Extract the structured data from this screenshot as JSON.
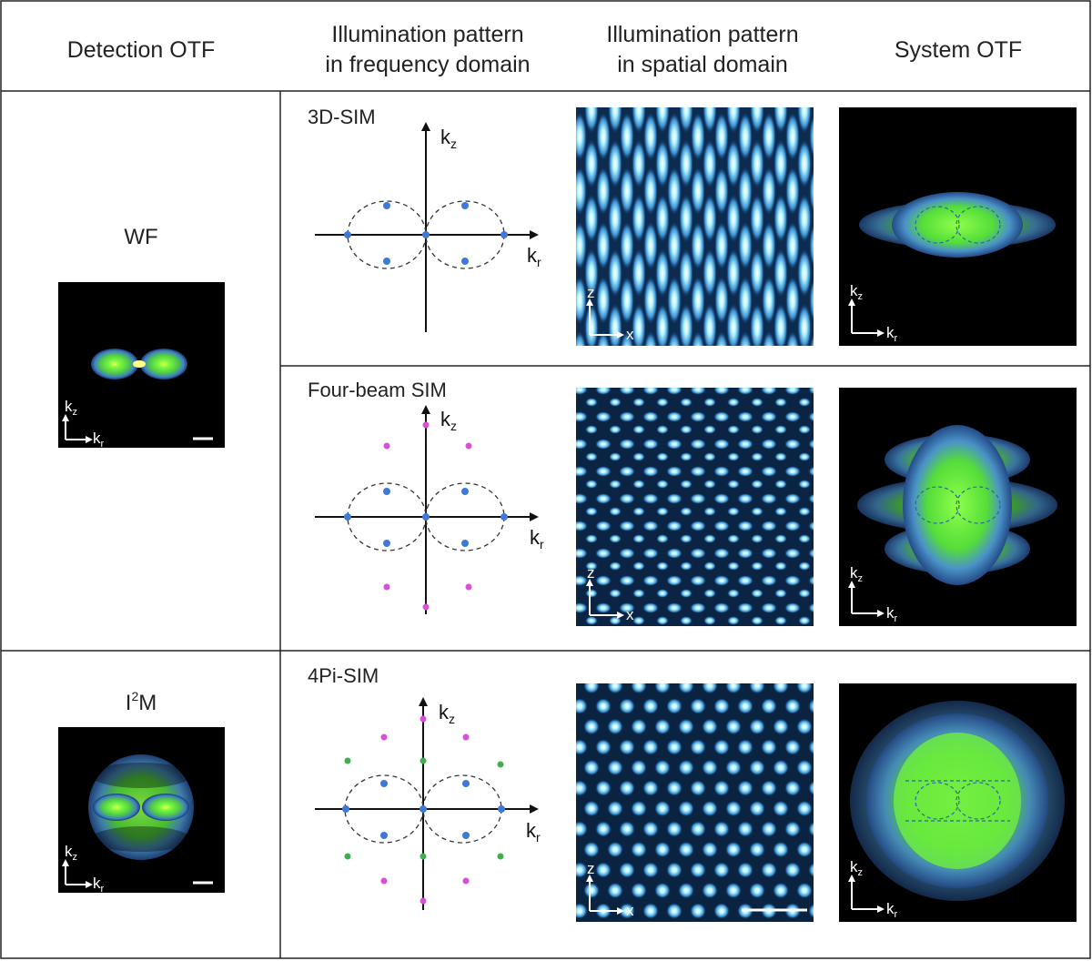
{
  "headers": {
    "detection_otf": "Detection OTF",
    "illum_freq_line1": "Illumination pattern",
    "illum_freq_line2": "in frequency domain",
    "illum_spatial_line1": "Illumination pattern",
    "illum_spatial_line2": "in spatial domain",
    "system_otf": "System OTF"
  },
  "detection": {
    "wf": "WF",
    "i2m_base": "I",
    "i2m_sup": "2",
    "i2m_tail": "M"
  },
  "modes": {
    "sim3d": "3D-SIM",
    "fourbeam": "Four-beam SIM",
    "pi4": "4Pi-SIM"
  },
  "axes": {
    "k": "k",
    "z_sub": "z",
    "r_sub": "r",
    "z": "z",
    "x": "x"
  },
  "colors": {
    "blue_dot": "#3f78d8",
    "magenta_dot": "#d94fd9",
    "green_dot": "#3fae4f",
    "otf_green": "#5be33a",
    "otf_blue": "#4a86c8",
    "pattern_cyan": "#a8f4ff"
  }
}
